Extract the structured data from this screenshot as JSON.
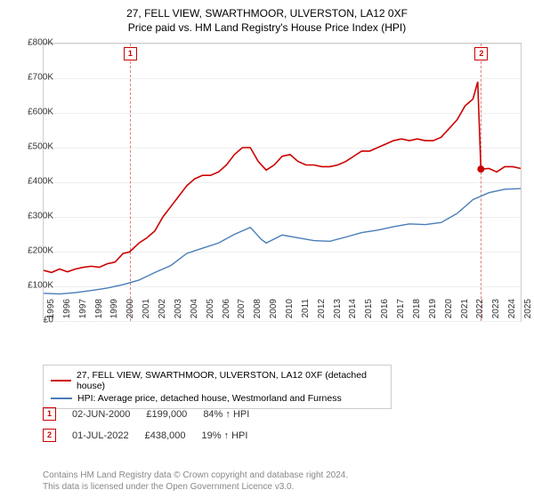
{
  "title_line1": "27, FELL VIEW, SWARTHMOOR, ULVERSTON, LA12 0XF",
  "title_line2": "Price paid vs. HM Land Registry's House Price Index (HPI)",
  "chart": {
    "type": "line",
    "background_color": "#ffffff",
    "grid_color": "#eeeeee",
    "border_color": "#cccccc",
    "ylim": [
      0,
      800000
    ],
    "ytick_step": 100000,
    "ytick_labels": [
      "£0",
      "£100K",
      "£200K",
      "£300K",
      "£400K",
      "£500K",
      "£600K",
      "£700K",
      "£800K"
    ],
    "xlim": [
      1995,
      2025
    ],
    "xtick_step": 1,
    "xtick_labels": [
      "1995",
      "1996",
      "1997",
      "1998",
      "1999",
      "2000",
      "2001",
      "2002",
      "2003",
      "2004",
      "2005",
      "2006",
      "2007",
      "2008",
      "2009",
      "2010",
      "2011",
      "2012",
      "2013",
      "2014",
      "2015",
      "2016",
      "2017",
      "2018",
      "2019",
      "2020",
      "2021",
      "2022",
      "2023",
      "2024",
      "2025"
    ],
    "series": [
      {
        "name": "property",
        "color": "#cc0000",
        "line_width": 1.6,
        "data": [
          [
            1995,
            146000
          ],
          [
            1995.5,
            140000
          ],
          [
            1996,
            150000
          ],
          [
            1996.5,
            142000
          ],
          [
            1997,
            150000
          ],
          [
            1997.5,
            155000
          ],
          [
            1998,
            158000
          ],
          [
            1998.5,
            155000
          ],
          [
            1999,
            165000
          ],
          [
            1999.5,
            170000
          ],
          [
            2000,
            195000
          ],
          [
            2000.4,
            199000
          ],
          [
            2001,
            225000
          ],
          [
            2001.5,
            240000
          ],
          [
            2002,
            260000
          ],
          [
            2002.5,
            300000
          ],
          [
            2003,
            330000
          ],
          [
            2003.5,
            360000
          ],
          [
            2004,
            390000
          ],
          [
            2004.5,
            410000
          ],
          [
            2005,
            420000
          ],
          [
            2005.5,
            420000
          ],
          [
            2006,
            430000
          ],
          [
            2006.5,
            450000
          ],
          [
            2007,
            480000
          ],
          [
            2007.5,
            500000
          ],
          [
            2008,
            500000
          ],
          [
            2008.5,
            460000
          ],
          [
            2009,
            435000
          ],
          [
            2009.5,
            450000
          ],
          [
            2010,
            475000
          ],
          [
            2010.5,
            480000
          ],
          [
            2011,
            460000
          ],
          [
            2011.5,
            450000
          ],
          [
            2012,
            450000
          ],
          [
            2012.5,
            445000
          ],
          [
            2013,
            445000
          ],
          [
            2013.5,
            450000
          ],
          [
            2014,
            460000
          ],
          [
            2014.5,
            475000
          ],
          [
            2015,
            490000
          ],
          [
            2015.5,
            490000
          ],
          [
            2016,
            500000
          ],
          [
            2016.5,
            510000
          ],
          [
            2017,
            520000
          ],
          [
            2017.5,
            525000
          ],
          [
            2018,
            520000
          ],
          [
            2018.5,
            525000
          ],
          [
            2019,
            520000
          ],
          [
            2019.5,
            520000
          ],
          [
            2020,
            530000
          ],
          [
            2020.5,
            555000
          ],
          [
            2021,
            580000
          ],
          [
            2021.5,
            620000
          ],
          [
            2022,
            640000
          ],
          [
            2022.3,
            690000
          ],
          [
            2022.5,
            438000
          ],
          [
            2023,
            440000
          ],
          [
            2023.5,
            430000
          ],
          [
            2024,
            445000
          ],
          [
            2024.5,
            445000
          ],
          [
            2025,
            440000
          ]
        ]
      },
      {
        "name": "hpi",
        "color": "#4a7db8",
        "line_width": 1.4,
        "data": [
          [
            1995,
            80000
          ],
          [
            1996,
            78000
          ],
          [
            1997,
            82000
          ],
          [
            1998,
            88000
          ],
          [
            1999,
            95000
          ],
          [
            2000,
            105000
          ],
          [
            2001,
            118000
          ],
          [
            2002,
            140000
          ],
          [
            2003,
            160000
          ],
          [
            2004,
            195000
          ],
          [
            2005,
            210000
          ],
          [
            2006,
            225000
          ],
          [
            2007,
            250000
          ],
          [
            2008,
            270000
          ],
          [
            2008.7,
            235000
          ],
          [
            2009,
            225000
          ],
          [
            2010,
            248000
          ],
          [
            2011,
            240000
          ],
          [
            2012,
            232000
          ],
          [
            2013,
            230000
          ],
          [
            2014,
            242000
          ],
          [
            2015,
            255000
          ],
          [
            2016,
            262000
          ],
          [
            2017,
            272000
          ],
          [
            2018,
            280000
          ],
          [
            2019,
            278000
          ],
          [
            2020,
            284000
          ],
          [
            2021,
            310000
          ],
          [
            2022,
            350000
          ],
          [
            2023,
            370000
          ],
          [
            2024,
            380000
          ],
          [
            2025,
            382000
          ]
        ]
      }
    ],
    "events": [
      {
        "id": "1",
        "date": "02-JUN-2000",
        "x": 2000.42,
        "price": "£199,000",
        "delta": "84% ↑ HPI",
        "marker_color": "#cc0000"
      },
      {
        "id": "2",
        "date": "01-JUL-2022",
        "x": 2022.5,
        "price": "£438,000",
        "delta": "19% ↑ HPI",
        "marker_color": "#cc0000"
      }
    ]
  },
  "legend": {
    "items": [
      {
        "color": "#cc0000",
        "label": "27, FELL VIEW, SWARTHMOOR, ULVERSTON, LA12 0XF (detached house)"
      },
      {
        "color": "#4a7db8",
        "label": "HPI: Average price, detached house, Westmorland and Furness"
      }
    ]
  },
  "footer_line1": "Contains HM Land Registry data © Crown copyright and database right 2024.",
  "footer_line2": "This data is licensed under the Open Government Licence v3.0."
}
